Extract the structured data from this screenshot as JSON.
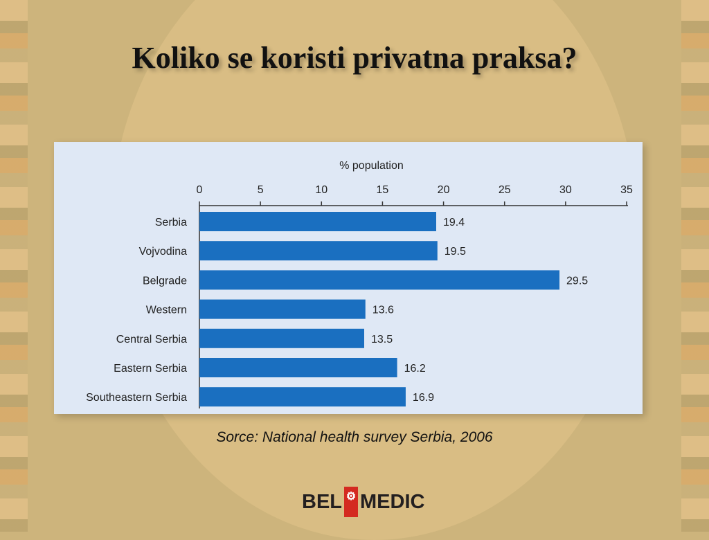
{
  "slide": {
    "title": "Koliko se koristi privatna praksa?",
    "source": "Sorce: National health survey Serbia, 2006",
    "logo_text": "BEL MEDIC"
  },
  "chart_data": {
    "type": "bar",
    "orientation": "horizontal",
    "title": "% population",
    "xlabel": "% population",
    "ylabel": "",
    "xlim": [
      0,
      35
    ],
    "ticks": [
      0,
      5,
      10,
      15,
      20,
      25,
      30,
      35
    ],
    "categories": [
      "Serbia",
      "Vojvodina",
      "Belgrade",
      "Western",
      "Central Serbia",
      "Eastern Serbia",
      "Southeastern Serbia"
    ],
    "values": [
      19.4,
      19.5,
      29.5,
      13.6,
      13.5,
      16.2,
      16.9
    ],
    "bar_color": "#1a6fc0",
    "axis_position": "top",
    "grid": false
  }
}
